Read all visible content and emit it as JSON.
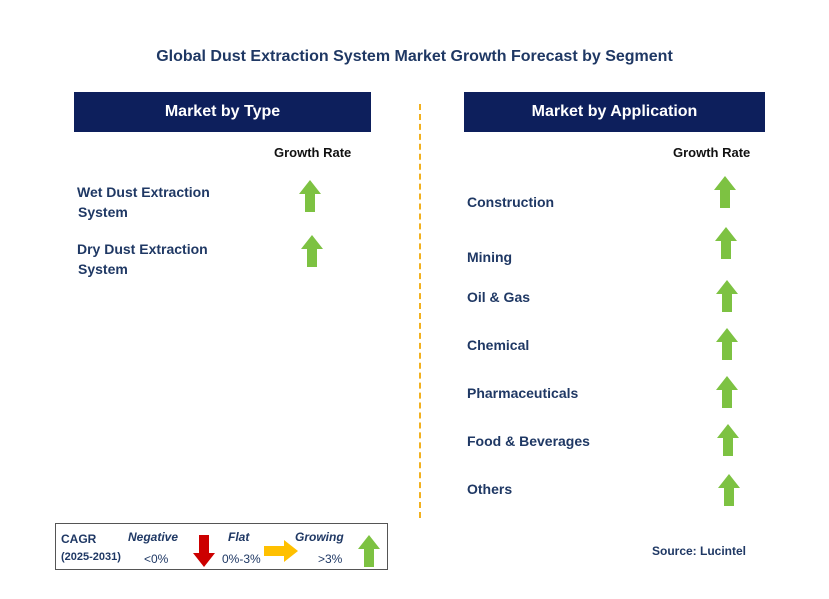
{
  "title": "Global Dust Extraction System Market Growth Forecast by Segment",
  "left_panel": {
    "header": "Market by Type",
    "growth_rate_label": "Growth Rate",
    "items": [
      {
        "line1": "Wet Dust Extraction",
        "line2": "System",
        "trend": "growing"
      },
      {
        "line1": "Dry Dust Extraction",
        "line2": "System",
        "trend": "growing"
      }
    ]
  },
  "right_panel": {
    "header": "Market by Application",
    "growth_rate_label": "Growth Rate",
    "items": [
      {
        "label": "Construction",
        "trend": "growing"
      },
      {
        "label": "Mining",
        "trend": "growing"
      },
      {
        "label": "Oil & Gas",
        "trend": "growing"
      },
      {
        "label": "Chemical",
        "trend": "growing"
      },
      {
        "label": "Pharmaceuticals",
        "trend": "growing"
      },
      {
        "label": "Food & Beverages",
        "trend": "growing"
      },
      {
        "label": "Others",
        "trend": "growing"
      }
    ]
  },
  "legend": {
    "cagr_label": "CAGR",
    "period": "(2025-2031)",
    "negative": {
      "label": "Negative",
      "range": "<0%",
      "color": "#cc0000"
    },
    "flat": {
      "label": "Flat",
      "range": "0%-3%",
      "color": "#ffc000"
    },
    "growing": {
      "label": "Growing",
      "range": ">3%",
      "color": "#7dc242"
    }
  },
  "source": "Source: Lucintel",
  "colors": {
    "header_bg": "#0d1f5c",
    "text": "#1f3864",
    "divider": "#f2b01e",
    "arrow_green": "#7dc242"
  }
}
